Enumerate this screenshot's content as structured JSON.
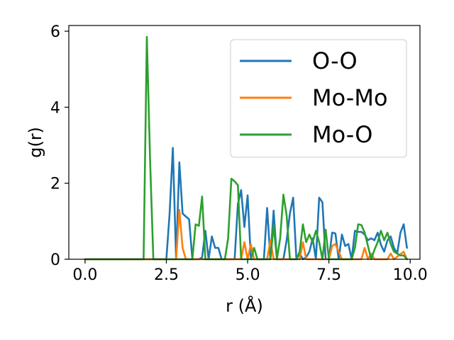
{
  "chart_data": {
    "type": "line",
    "title": "",
    "xlabel": "r (Å)",
    "ylabel": "g(r)",
    "xlim": [
      -0.5,
      10.3
    ],
    "ylim": [
      0,
      6.15
    ],
    "xticks": [
      "0.0",
      "2.5",
      "5.0",
      "7.5",
      "10.0"
    ],
    "xtick_values": [
      0,
      2.5,
      5.0,
      7.5,
      10.0
    ],
    "yticks": [
      "0",
      "2",
      "4",
      "6"
    ],
    "ytick_values": [
      0,
      2,
      4,
      6
    ],
    "grid": false,
    "legend_position": "top-right",
    "series": [
      {
        "name": "O-O",
        "color": "#1f77b4",
        "x": [
          0,
          2.5,
          2.6,
          2.7,
          2.8,
          2.9,
          3.0,
          3.2,
          3.3,
          3.5,
          3.6,
          3.7,
          3.8,
          3.9,
          4.0,
          4.1,
          4.2,
          4.3,
          4.4,
          4.5,
          4.6,
          4.7,
          4.8,
          4.9,
          5.0,
          5.1,
          5.2,
          5.3,
          5.4,
          5.5,
          5.6,
          5.7,
          5.8,
          5.9,
          6.0,
          6.1,
          6.2,
          6.3,
          6.4,
          6.5,
          6.6,
          6.7,
          6.8,
          6.9,
          7.0,
          7.1,
          7.2,
          7.3,
          7.4,
          7.5,
          7.6,
          7.7,
          7.8,
          7.9,
          8.0,
          8.1,
          8.2,
          8.3,
          8.4,
          8.5,
          8.6,
          8.7,
          8.8,
          8.9,
          9.0,
          9.1,
          9.2,
          9.3,
          9.4,
          9.5,
          9.6,
          9.7,
          9.8,
          9.9
        ],
        "y": [
          0,
          0,
          1.2,
          2.93,
          0,
          2.55,
          1.2,
          1.05,
          0,
          0,
          0.05,
          0.75,
          0,
          0.6,
          0.3,
          0.3,
          0,
          0,
          0,
          0,
          0,
          1.45,
          1.82,
          0.85,
          1.68,
          0,
          0,
          0,
          0,
          0,
          1.35,
          0,
          1.28,
          0,
          0,
          0,
          0.5,
          1.2,
          1.62,
          0,
          0.15,
          0,
          0.05,
          0.2,
          0.55,
          0,
          1.62,
          1.5,
          0,
          0,
          0.7,
          0.68,
          0,
          0.65,
          0.35,
          0.4,
          0,
          0.75,
          0.72,
          0.72,
          0.65,
          0.5,
          0.55,
          0.5,
          0.7,
          0.38,
          0.2,
          0.5,
          0.6,
          0.3,
          0.15,
          0.7,
          0.92,
          0.3
        ]
      },
      {
        "name": "Mo-Mo",
        "color": "#ff7f0e",
        "x": [
          0,
          2.7,
          2.8,
          2.9,
          3.0,
          3.1,
          4.8,
          4.9,
          5.0,
          5.1,
          5.2,
          5.3,
          5.6,
          5.7,
          5.8,
          5.9,
          6.6,
          6.7,
          6.8,
          7.5,
          7.6,
          7.7,
          7.8,
          7.9,
          8.5,
          8.6,
          8.7,
          8.8,
          8.9,
          9.3,
          9.4,
          9.5,
          9.8,
          9.9
        ],
        "y": [
          0,
          0,
          0,
          1.3,
          0.3,
          0,
          0,
          0.45,
          0,
          0.4,
          0,
          0,
          0,
          0.5,
          0,
          0,
          0,
          0.45,
          0,
          0,
          0.35,
          0.4,
          0.2,
          0,
          0,
          0.3,
          0,
          0.15,
          0,
          0,
          0.15,
          0,
          0.2,
          0
        ]
      },
      {
        "name": "Mo-O",
        "color": "#2ca02c",
        "x": [
          0,
          1.8,
          1.9,
          2.0,
          2.1,
          2.2,
          3.0,
          3.1,
          3.3,
          3.4,
          3.5,
          3.6,
          3.7,
          3.8,
          3.9,
          4.0,
          4.1,
          4.2,
          4.3,
          4.4,
          4.5,
          4.6,
          4.7,
          4.8,
          4.9,
          5.0,
          5.1,
          5.2,
          5.3,
          5.4,
          5.5,
          5.6,
          5.7,
          5.8,
          5.9,
          6.0,
          6.1,
          6.2,
          6.3,
          6.4,
          6.5,
          6.6,
          6.7,
          6.8,
          6.9,
          7.0,
          7.1,
          7.2,
          7.3,
          7.4,
          7.5,
          7.6,
          7.7,
          7.8,
          7.9,
          8.0,
          8.1,
          8.2,
          8.3,
          8.4,
          8.5,
          8.6,
          8.7,
          8.8,
          8.9,
          9.0,
          9.1,
          9.2,
          9.3,
          9.4,
          9.5,
          9.6,
          9.7,
          9.8,
          9.9
        ],
        "y": [
          0,
          0,
          5.85,
          2.6,
          0,
          0,
          0,
          0,
          0,
          0.92,
          0.88,
          1.65,
          0,
          0,
          0,
          0,
          0,
          0,
          0,
          0.55,
          2.12,
          2.05,
          1.95,
          0,
          0,
          0,
          0,
          0.3,
          0,
          0,
          0,
          0,
          0,
          0.9,
          0,
          0.55,
          1.7,
          1.15,
          0,
          0,
          0,
          0.2,
          0.92,
          0.45,
          0.65,
          0.45,
          0.75,
          0.45,
          0,
          0.78,
          0,
          0,
          0,
          0,
          0,
          0,
          0,
          0,
          0.3,
          0.92,
          0.9,
          0.7,
          0.35,
          0,
          0.25,
          0.45,
          0.75,
          0.5,
          0.7,
          0.4,
          0.2,
          0.15,
          0.1,
          0.1,
          0
        ]
      }
    ]
  }
}
